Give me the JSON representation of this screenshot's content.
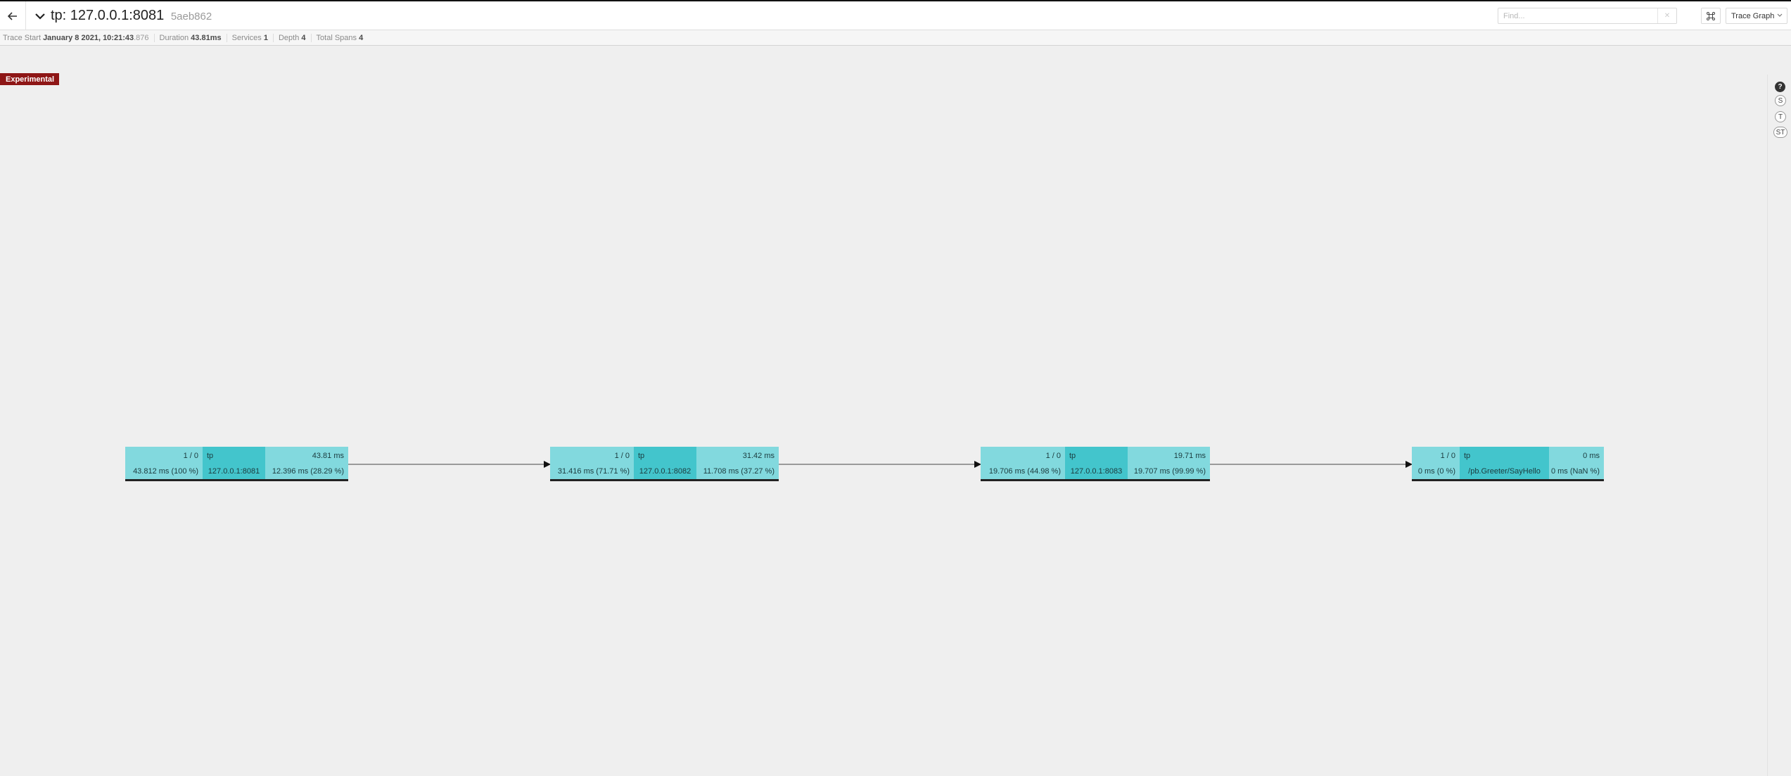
{
  "header": {
    "trace_name": "tp: 127.0.0.1:8081",
    "trace_id": "5aeb862",
    "find_placeholder": "Find...",
    "find_clear": "✕",
    "view_mode": "Trace Graph"
  },
  "meta": {
    "trace_start_label": "Trace Start",
    "trace_start_value": "January 8 2021, 10:21:43",
    "trace_start_ms": ".876",
    "duration_label": "Duration",
    "duration_value": "43.81ms",
    "services_label": "Services",
    "services_value": "1",
    "depth_label": "Depth",
    "depth_value": "4",
    "total_spans_label": "Total Spans",
    "total_spans_value": "4"
  },
  "badge": "Experimental",
  "rail": {
    "help": "?",
    "s": "S",
    "t": "T",
    "st": "ST"
  },
  "nodes": [
    {
      "count": "1 / 0",
      "service": "tp",
      "operation": "127.0.0.1:8081",
      "total": "43.81 ms",
      "self_time": "43.812 ms (100 %)",
      "child_time": "12.396 ms (28.29 %)"
    },
    {
      "count": "1 / 0",
      "service": "tp",
      "operation": "127.0.0.1:8082",
      "total": "31.42 ms",
      "self_time": "31.416 ms (71.71 %)",
      "child_time": "11.708 ms (37.27 %)"
    },
    {
      "count": "1 / 0",
      "service": "tp",
      "operation": "127.0.0.1:8083",
      "total": "19.71 ms",
      "self_time": "19.706 ms (44.98 %)",
      "child_time": "19.707 ms (99.99 %)"
    },
    {
      "count": "1 / 0",
      "service": "tp",
      "operation": "/pb.Greeter/SayHello",
      "total": "0 ms",
      "self_time": "0 ms (0 %)",
      "child_time": "0 ms (NaN %)"
    }
  ],
  "colors": {
    "node_light": "#82d9de",
    "node_dark": "#43c5cc",
    "badge_red": "#8e1616"
  }
}
